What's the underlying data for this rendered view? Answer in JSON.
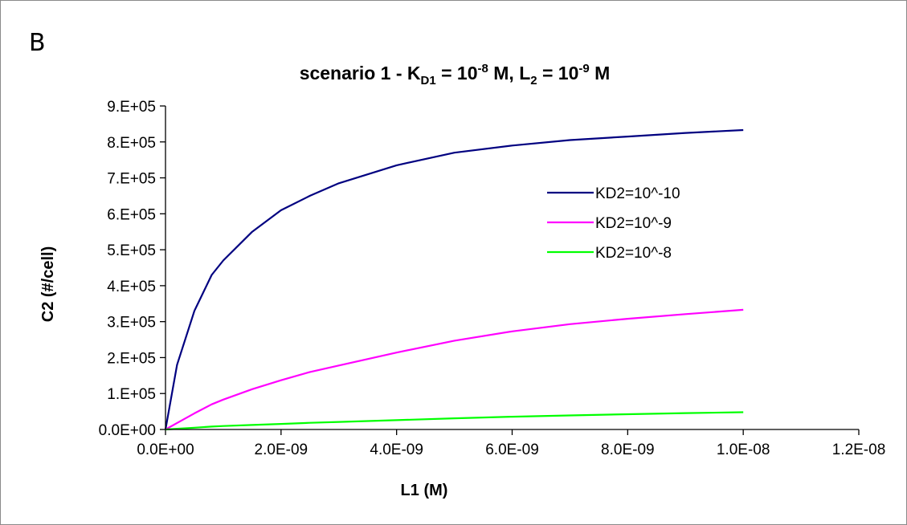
{
  "panel_label": "B",
  "chart_data": {
    "type": "line",
    "title": {
      "prefix": "scenario 1 - K",
      "sub1": "D1",
      "mid1": " = 10",
      "sup1": "-8",
      "mid2": " M, L",
      "sub2": "2",
      "mid3": " = 10",
      "sup2": "-9",
      "suffix": " M"
    },
    "xlabel": "L1 (M)",
    "ylabel": "C2 (#/cell)",
    "xlim": [
      0,
      1.2e-08
    ],
    "ylim": [
      0,
      900000
    ],
    "x_ticks": [
      0,
      2e-09,
      4e-09,
      6e-09,
      8e-09,
      1e-08,
      1.2e-08
    ],
    "x_tick_labels": [
      "0.0E+00",
      "2.0E-09",
      "4.0E-09",
      "6.0E-09",
      "8.0E-09",
      "1.0E-08",
      "1.2E-08"
    ],
    "y_ticks": [
      0,
      100000,
      200000,
      300000,
      400000,
      500000,
      600000,
      700000,
      800000,
      900000
    ],
    "y_tick_labels": [
      "0.0E+00",
      "1.E+05",
      "2.E+05",
      "3.E+05",
      "4.E+05",
      "5.E+05",
      "6.E+05",
      "7.E+05",
      "8.E+05",
      "9.E+05"
    ],
    "grid": false,
    "legend_position": "right-middle",
    "x": [
      0,
      2e-10,
      5e-10,
      8e-10,
      1e-09,
      1.5e-09,
      2e-09,
      2.5e-09,
      3e-09,
      4e-09,
      5e-09,
      6e-09,
      7e-09,
      8e-09,
      9e-09,
      1e-08
    ],
    "series": [
      {
        "name": "KD2=10^-10",
        "color": "#000080",
        "values": [
          0,
          180000,
          330000,
          430000,
          470000,
          550000,
          610000,
          650000,
          685000,
          735000,
          770000,
          790000,
          805000,
          815000,
          825000,
          833000
        ]
      },
      {
        "name": "KD2=10^-9",
        "color": "#ff00ff",
        "values": [
          0,
          18000,
          45000,
          70000,
          83000,
          112000,
          137000,
          160000,
          178000,
          214000,
          247000,
          273000,
          293000,
          308000,
          321000,
          333000
        ]
      },
      {
        "name": "KD2=10^-8",
        "color": "#00ff00",
        "values": [
          0,
          2000,
          5000,
          8000,
          9500,
          12500,
          15500,
          18500,
          21000,
          26000,
          31000,
          35500,
          39000,
          42500,
          45500,
          48000
        ]
      }
    ]
  }
}
